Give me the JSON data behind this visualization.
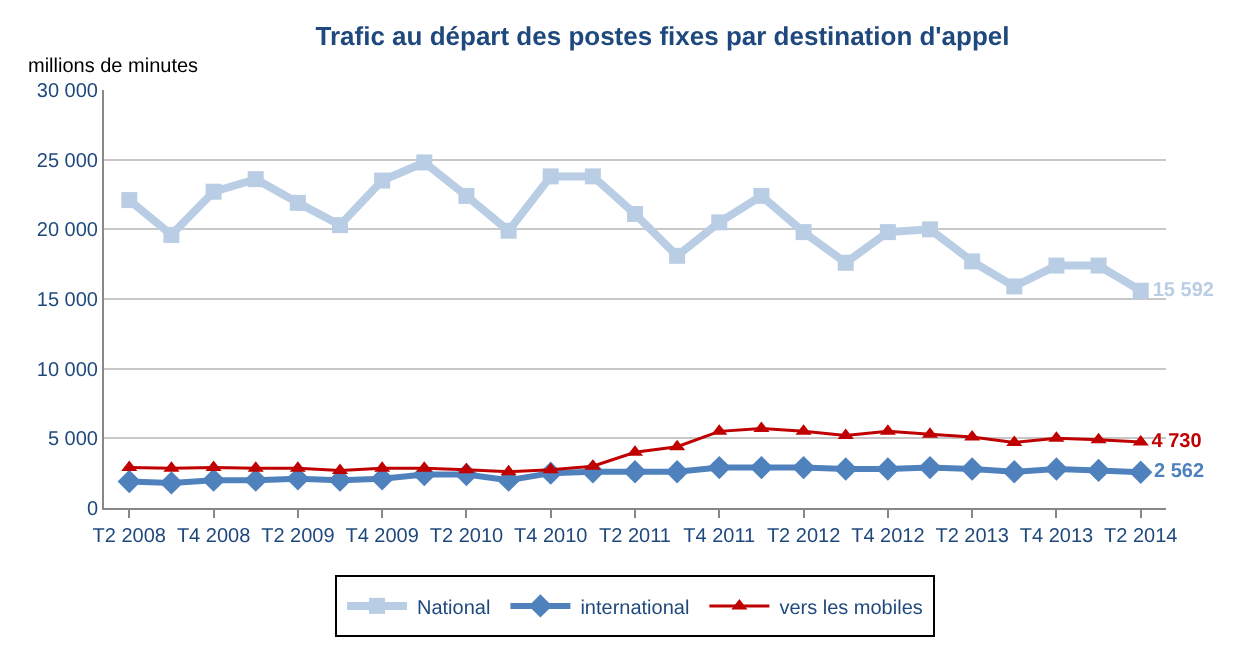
{
  "chart_data": {
    "type": "line",
    "title": "Trafic au départ des postes fixes par destination d'appel",
    "ylabel": "millions de minutes",
    "categories": [
      "T2 2008",
      null,
      "T4 2008",
      null,
      "T2 2009",
      null,
      "T4 2009",
      null,
      "T2 2010",
      null,
      "T4 2010",
      null,
      "T2 2011",
      null,
      "T4 2011",
      null,
      "T2 2012",
      null,
      "T4 2012",
      null,
      "T2 2013",
      null,
      "T4 2013",
      null,
      "T2 2014"
    ],
    "series": [
      {
        "name": "National",
        "color": "#b9cde5",
        "marker": "square",
        "values": [
          22100,
          19600,
          22700,
          23600,
          21900,
          20300,
          23500,
          24800,
          22400,
          19900,
          23800,
          23800,
          21100,
          18100,
          20500,
          22400,
          19800,
          17600,
          19800,
          20000,
          17700,
          15900,
          17400,
          17400,
          15592
        ],
        "value_labels": [
          null,
          null,
          null,
          null,
          null,
          null,
          null,
          null,
          null,
          null,
          null,
          null,
          null,
          null,
          null,
          null,
          null,
          null,
          null,
          null,
          null,
          null,
          null,
          null,
          "15 592"
        ]
      },
      {
        "name": "international",
        "color": "#4f81bd",
        "marker": "diamond",
        "values": [
          1900,
          1800,
          2000,
          2000,
          2100,
          2000,
          2100,
          2400,
          2400,
          2000,
          2500,
          2600,
          2600,
          2600,
          2900,
          2900,
          2900,
          2800,
          2800,
          2900,
          2800,
          2600,
          2800,
          2700,
          2562
        ],
        "value_labels": [
          null,
          null,
          null,
          null,
          null,
          null,
          null,
          null,
          null,
          null,
          null,
          null,
          null,
          null,
          null,
          null,
          null,
          null,
          null,
          null,
          null,
          null,
          null,
          null,
          "2 562"
        ]
      },
      {
        "name": "vers les mobiles",
        "color": "#c00000",
        "marker": "triangle",
        "values": [
          2900,
          2850,
          2900,
          2850,
          2850,
          2700,
          2850,
          2850,
          2750,
          2600,
          2750,
          3000,
          4000,
          4400,
          5500,
          5700,
          5500,
          5200,
          5500,
          5300,
          5100,
          4700,
          5000,
          4900,
          4730
        ],
        "value_labels": [
          null,
          null,
          null,
          null,
          null,
          null,
          null,
          null,
          null,
          null,
          null,
          null,
          null,
          null,
          null,
          null,
          null,
          null,
          null,
          null,
          null,
          null,
          null,
          null,
          "4 730"
        ]
      }
    ],
    "ylim": [
      0,
      30000
    ],
    "yticks": [
      {
        "value": 0,
        "label": "0"
      },
      {
        "value": 5000,
        "label": "5 000"
      },
      {
        "value": 10000,
        "label": "10 000"
      },
      {
        "value": 15000,
        "label": "15 000"
      },
      {
        "value": 20000,
        "label": "20 000"
      },
      {
        "value": 25000,
        "label": "25 000"
      },
      {
        "value": 30000,
        "label": "30 000"
      }
    ],
    "grid": "y",
    "legend": "bottom",
    "line_style": "solid"
  }
}
